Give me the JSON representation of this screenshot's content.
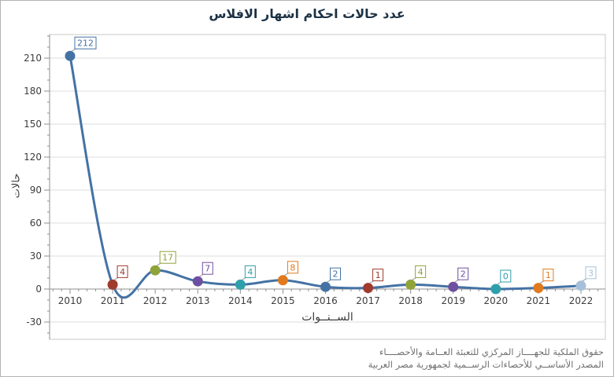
{
  "window": {
    "background": "#ffffff",
    "border_color": "#b3b3b3"
  },
  "chart_data": {
    "type": "line",
    "title": "عدد حالات احكام اشهار الافلاس",
    "xlabel": "الســنــوات",
    "ylabel": "حالات",
    "categories": [
      "2010",
      "2011",
      "2012",
      "2013",
      "2014",
      "2015",
      "2016",
      "2017",
      "2018",
      "2019",
      "2020",
      "2021",
      "2022"
    ],
    "values": [
      212,
      4,
      17,
      7,
      4,
      8,
      2,
      1,
      4,
      2,
      0,
      1,
      3
    ],
    "point_colors": [
      "#4472a4",
      "#9e3b2e",
      "#8fa33b",
      "#6e4fa0",
      "#2e9fab",
      "#e07a1e",
      "#4472a4",
      "#9e3b2e",
      "#8fa33b",
      "#6e4fa0",
      "#2e9fab",
      "#e07a1e",
      "#a6c0da"
    ],
    "line_color": "#4472a4",
    "line_style": "smooth-spline",
    "marker_shape": "circle",
    "data_labels": true,
    "yticks": [
      210,
      180,
      150,
      120,
      90,
      60,
      30,
      0,
      -30
    ],
    "ylim": [
      -45,
      232
    ],
    "grid": "horizontal",
    "legend": "none"
  },
  "footer": {
    "line1": "حقوق الملكية للجهــــاز المركزي للتعبئة العــامة والأحصــــاء",
    "line2": "المصدر الأساســي للأحصاءات الرســمية لجمهورية مصر العربية"
  },
  "colors": {
    "grid": "#dcdcdc",
    "frame": "#c8c8c8",
    "axis": "#8f8f8f",
    "tick_label": "#3d3d3d",
    "title": "#1c3144",
    "footer_text": "#6f6f6f",
    "label_connector": "#9a9a9a"
  }
}
